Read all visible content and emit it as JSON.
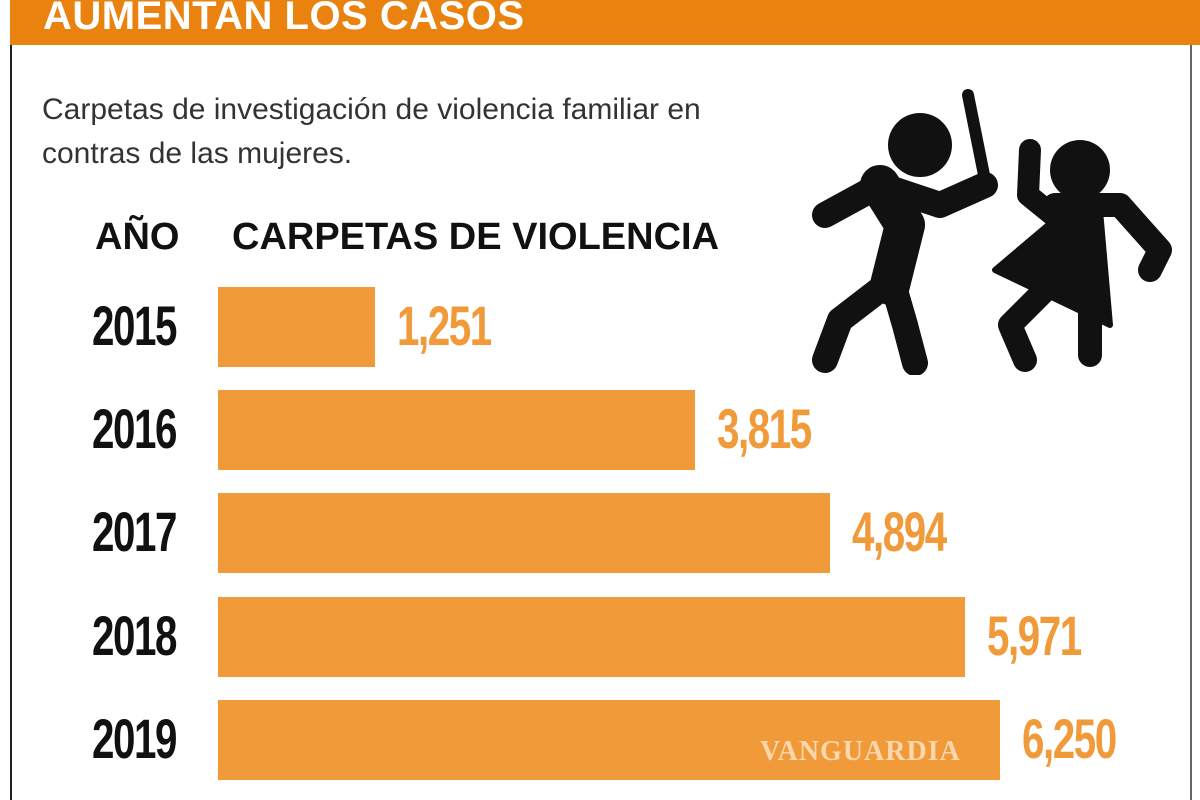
{
  "header": {
    "title": "AUMENTAN LOS CASOS"
  },
  "subtitle": "Carpetas de investigación de violencia familiar en contras de las mujeres.",
  "watermark": "VANGUARDIA",
  "icon": "domestic-violence-figures-icon",
  "colors": {
    "header": "#E9820F",
    "bar": "#F09A3A",
    "text": "#111111"
  },
  "chart_data": {
    "type": "bar",
    "orientation": "horizontal",
    "title": "AUMENTAN LOS CASOS",
    "category_header": "AÑO",
    "value_header": "CARPETAS DE VIOLENCIA",
    "categories": [
      "2015",
      "2016",
      "2017",
      "2018",
      "2019"
    ],
    "values": [
      1251,
      3815,
      4894,
      5971,
      6250
    ],
    "value_labels": [
      "1,251",
      "3,815",
      "4,894",
      "5,971",
      "6,250"
    ],
    "grid": false
  }
}
